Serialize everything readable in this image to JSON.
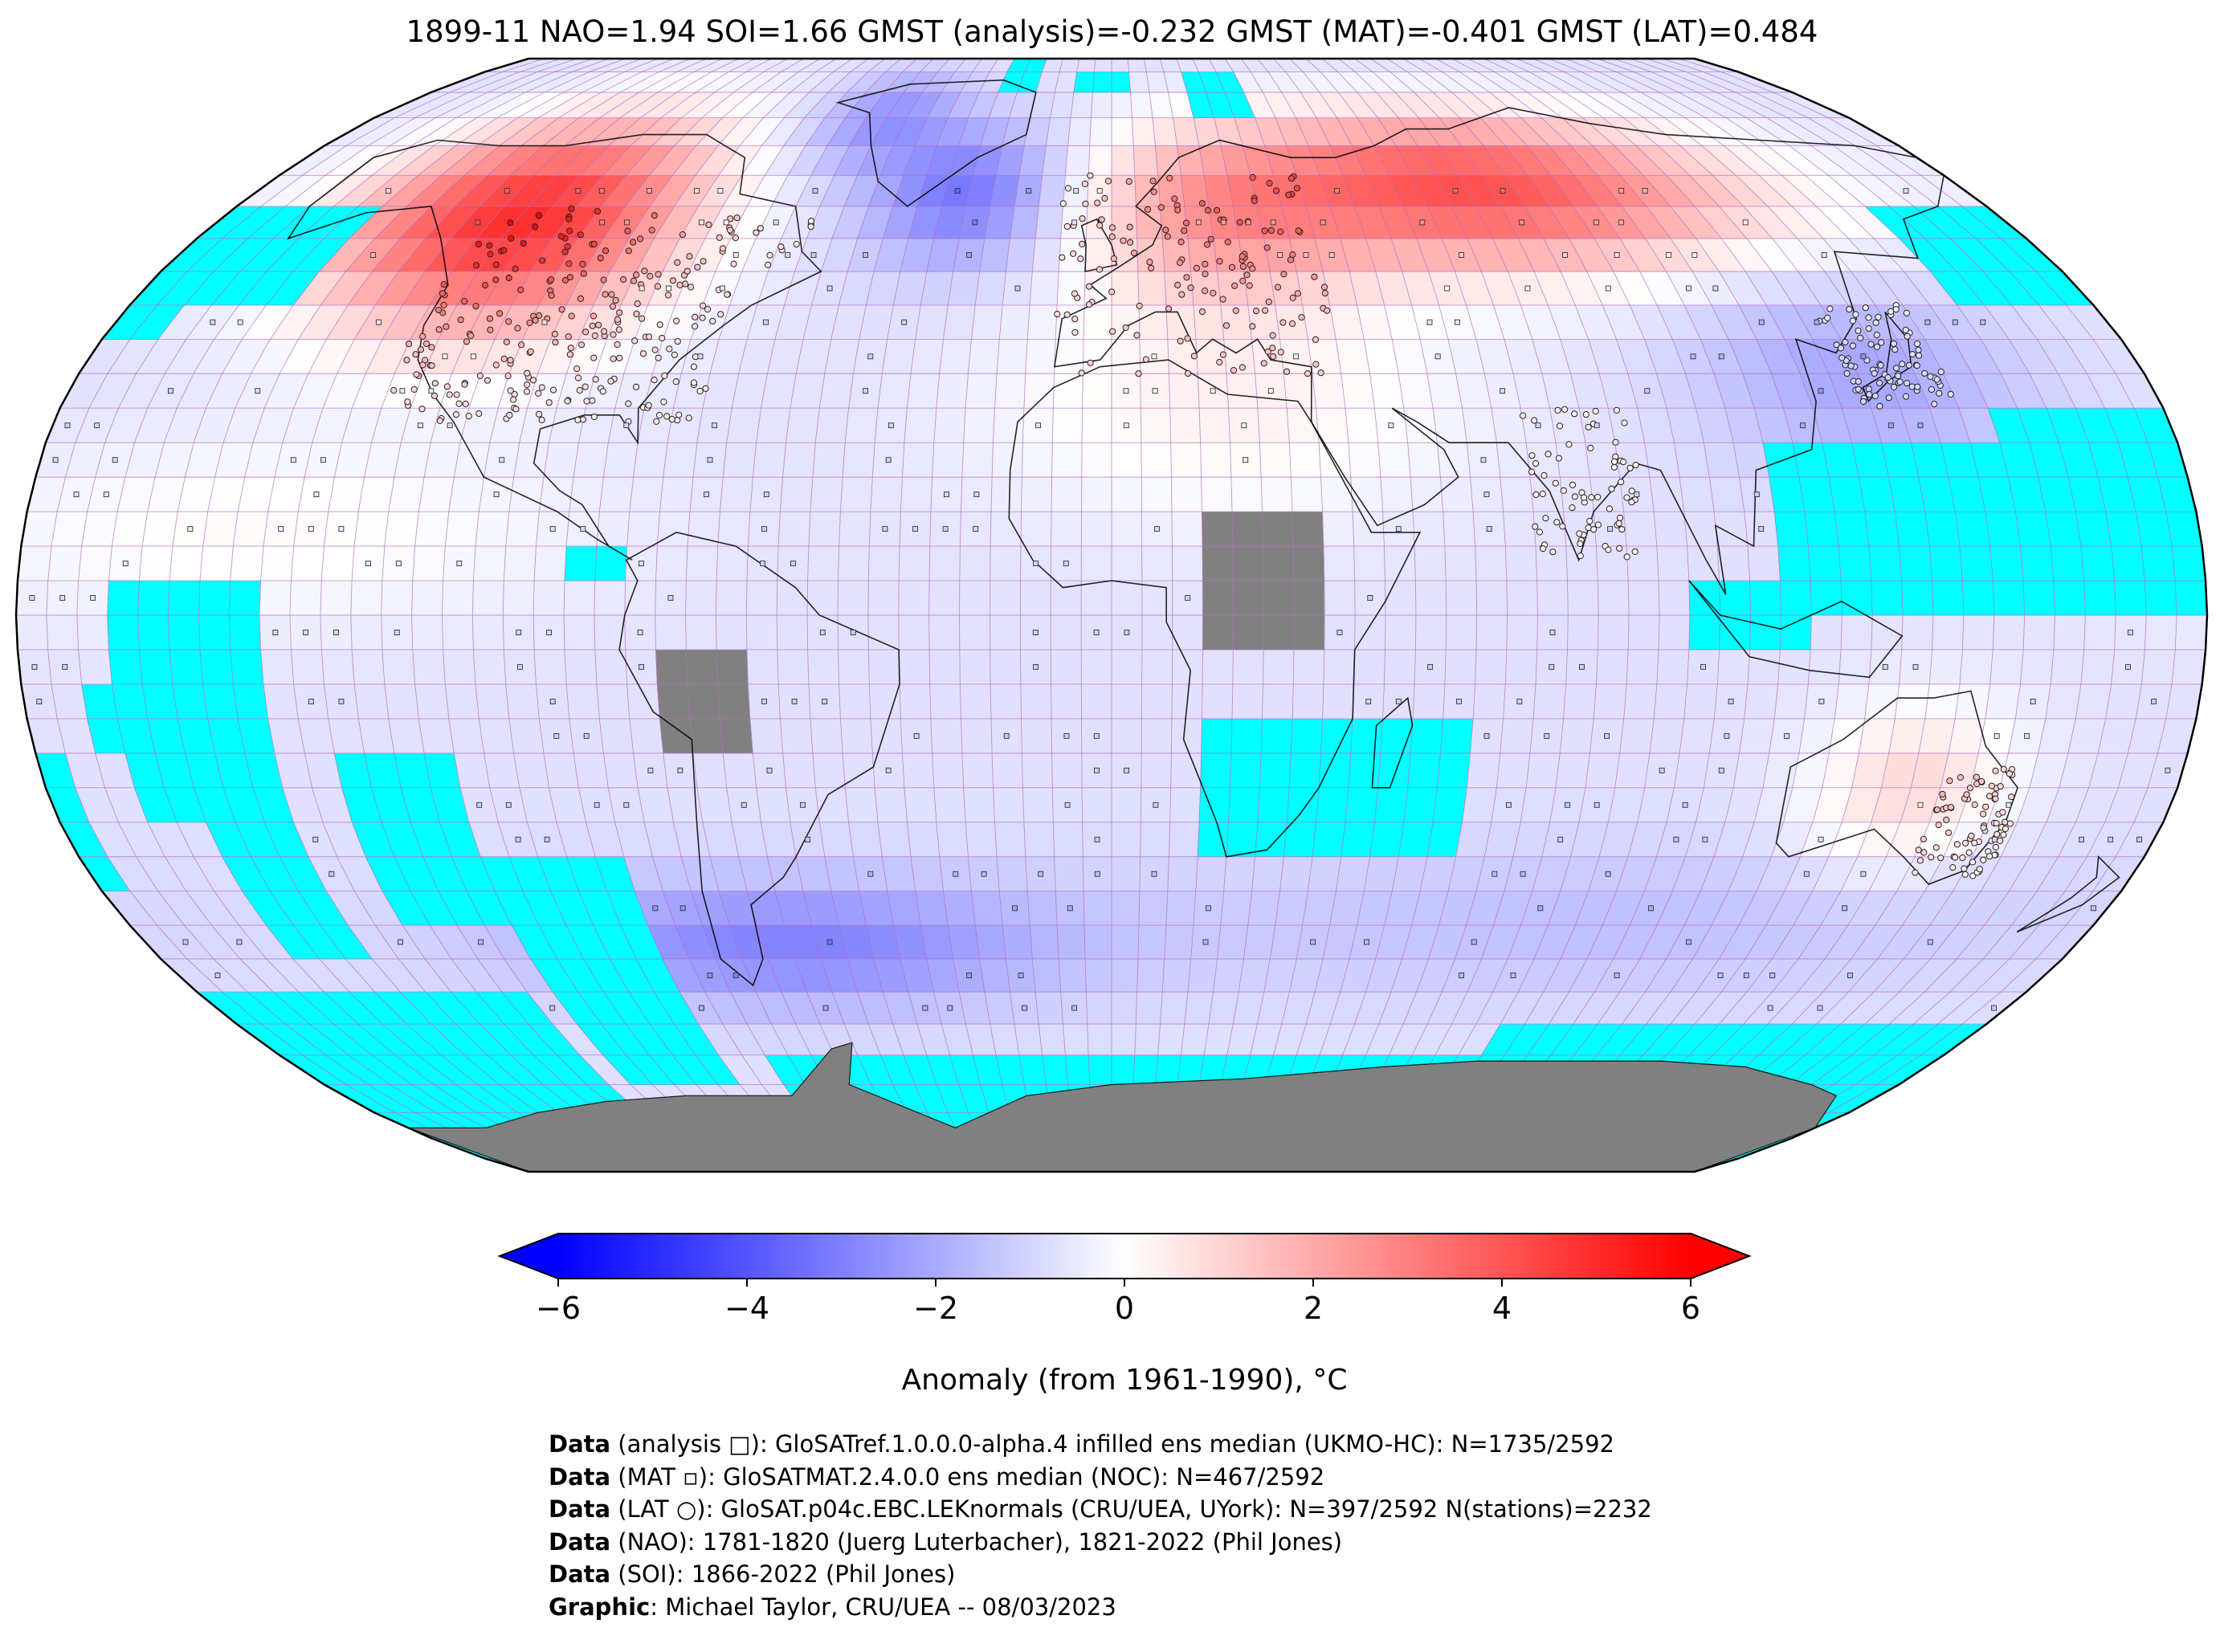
{
  "title": "1899-11 NAO=1.94 SOI=1.66 GMST (analysis)=-0.232 GMST (MAT)=-0.401 GMST (LAT)=0.484",
  "map": {
    "projection": "robinson",
    "grid_resolution_deg": 5,
    "colors": {
      "missing": "#00ffff",
      "no_data_land": "#808080",
      "grid_line": "#b070c0",
      "coastline": "#000000"
    }
  },
  "colorbar": {
    "label": "Anomaly (from 1961-1990), °C",
    "min": -6,
    "max": 6,
    "ticks": [
      {
        "value": -6,
        "label": "−6"
      },
      {
        "value": -4,
        "label": "−4"
      },
      {
        "value": -2,
        "label": "−2"
      },
      {
        "value": 0,
        "label": "0"
      },
      {
        "value": 2,
        "label": "2"
      },
      {
        "value": 4,
        "label": "4"
      },
      {
        "value": 6,
        "label": "6"
      }
    ],
    "colors": [
      "#0000ff",
      "#ffffff",
      "#ff0000"
    ],
    "extend": "both"
  },
  "footer": [
    {
      "bold": "Data",
      "text": " (analysis □): GloSATref.1.0.0.0-alpha.4 infilled ens median (UKMO-HC): N=1735/2592"
    },
    {
      "bold": "Data",
      "text": " (MAT ▫): GloSATMAT.2.4.0.0 ens median (NOC): N=467/2592"
    },
    {
      "bold": "Data",
      "text": " (LAT ○): GloSAT.p04c.EBC.LEKnormals (CRU/UEA, UYork): N=397/2592 N(stations)=2232"
    },
    {
      "bold": "Data",
      "text": " (NAO): 1781-1820 (Juerg Luterbacher), 1821-2022 (Phil Jones)"
    },
    {
      "bold": "Data",
      "text": " (SOI): 1866-2022 (Phil Jones)"
    },
    {
      "bold": "Graphic",
      "text": ": Michael Taylor, CRU/UEA -- 08/03/2023"
    }
  ]
}
